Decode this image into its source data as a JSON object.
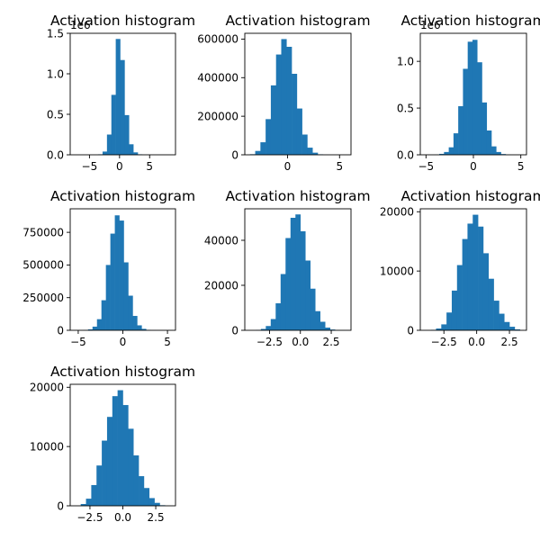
{
  "colors": {
    "bar": "#1f77b4",
    "axis": "#000000",
    "background": "#ffffff"
  },
  "chart_data": [
    {
      "type": "bar",
      "title": "Activation histogram",
      "offset_text": "1e6",
      "xlim": [
        -8.2,
        9.3
      ],
      "ylim": [
        0,
        1.5
      ],
      "xticks": [
        -5,
        0,
        5
      ],
      "xtick_labels": [
        "−5",
        "0",
        "5"
      ],
      "yticks": [
        0,
        0.5,
        1.0,
        1.5
      ],
      "ytick_labels": [
        "0.0",
        "0.5",
        "1.0",
        "1.5"
      ],
      "bin_edges": [
        -7.2,
        -6.47,
        -5.74,
        -5.01,
        -4.28,
        -3.55,
        -2.82,
        -2.09,
        -1.36,
        -0.63,
        0.1,
        0.83,
        1.56,
        2.29,
        3.02,
        3.75,
        4.48,
        5.21,
        5.94,
        6.67,
        7.4
      ],
      "values": [
        0,
        0,
        0,
        0,
        0.001,
        0.006,
        0.04,
        0.25,
        0.74,
        1.43,
        1.17,
        0.49,
        0.13,
        0.03,
        0.006,
        0.001,
        0,
        0,
        0,
        0
      ]
    },
    {
      "type": "bar",
      "title": "Activation histogram",
      "offset_text": "",
      "xlim": [
        -4.1,
        6.1
      ],
      "ylim": [
        0,
        630000
      ],
      "xticks": [
        0,
        5
      ],
      "xtick_labels": [
        "0",
        "5"
      ],
      "yticks": [
        0,
        200000,
        400000,
        600000
      ],
      "ytick_labels": [
        "0",
        "200000",
        "400000",
        "600000"
      ],
      "bin_edges": [
        -3.6,
        -3.1,
        -2.6,
        -2.1,
        -1.6,
        -1.1,
        -0.6,
        -0.1,
        0.4,
        0.9,
        1.4,
        1.9,
        2.4,
        2.9,
        3.4,
        3.9,
        4.4,
        4.9,
        5.4
      ],
      "values": [
        3000,
        20000,
        65000,
        185000,
        360000,
        520000,
        600000,
        560000,
        420000,
        240000,
        105000,
        37000,
        11000,
        2500,
        600,
        150,
        40,
        10
      ]
    },
    {
      "type": "bar",
      "title": "Activation histogram",
      "offset_text": "1e6",
      "xlim": [
        -5.6,
        5.6
      ],
      "ylim": [
        0,
        1.3
      ],
      "xticks": [
        -5,
        0,
        5
      ],
      "xtick_labels": [
        "−5",
        "0",
        "5"
      ],
      "yticks": [
        0,
        0.5,
        1.0
      ],
      "ytick_labels": [
        "0.0",
        "0.5",
        "1.0"
      ],
      "bin_edges": [
        -4.6,
        -4.1,
        -3.6,
        -3.1,
        -2.6,
        -2.1,
        -1.6,
        -1.1,
        -0.6,
        -0.1,
        0.4,
        0.9,
        1.4,
        1.9,
        2.4,
        2.9,
        3.4,
        3.9,
        4.4,
        4.9
      ],
      "values": [
        0.0005,
        0.002,
        0.01,
        0.03,
        0.08,
        0.23,
        0.52,
        0.92,
        1.21,
        1.23,
        0.99,
        0.56,
        0.26,
        0.09,
        0.03,
        0.008,
        0.002,
        0.0005,
        0.0001
      ]
    },
    {
      "type": "bar",
      "title": "Activation histogram",
      "offset_text": "",
      "xlim": [
        -5.9,
        5.9
      ],
      "ylim": [
        0,
        930000
      ],
      "xticks": [
        -5,
        0,
        5
      ],
      "xtick_labels": [
        "−5",
        "0",
        "5"
      ],
      "yticks": [
        0,
        250000,
        500000,
        750000
      ],
      "ytick_labels": [
        "0",
        "250000",
        "500000",
        "750000"
      ],
      "bin_edges": [
        -4.9,
        -4.4,
        -3.9,
        -3.4,
        -2.9,
        -2.4,
        -1.9,
        -1.4,
        -0.9,
        -0.4,
        0.1,
        0.6,
        1.1,
        1.6,
        2.1,
        2.6,
        3.1,
        3.6,
        4.1,
        4.6,
        5.1
      ],
      "values": [
        300,
        1500,
        7000,
        28000,
        85000,
        230000,
        500000,
        740000,
        880000,
        840000,
        520000,
        265000,
        110000,
        38000,
        11000,
        3000,
        800,
        200,
        50,
        10
      ]
    },
    {
      "type": "bar",
      "title": "Activation histogram",
      "offset_text": "",
      "xlim": [
        -4.5,
        4.1
      ],
      "ylim": [
        0,
        54000
      ],
      "xticks": [
        -2.5,
        0.0,
        2.5
      ],
      "xtick_labels": [
        "−2.5",
        "0.0",
        "2.5"
      ],
      "yticks": [
        0,
        20000,
        40000
      ],
      "ytick_labels": [
        "0",
        "20000",
        "40000"
      ],
      "bin_edges": [
        -3.6,
        -3.2,
        -2.8,
        -2.4,
        -2.0,
        -1.6,
        -1.2,
        -0.8,
        -0.4,
        0.0,
        0.4,
        0.8,
        1.2,
        1.6,
        2.0,
        2.4,
        2.8,
        3.2,
        3.6
      ],
      "values": [
        150,
        600,
        1900,
        5000,
        12000,
        25000,
        41000,
        50000,
        51500,
        44000,
        31000,
        18500,
        8500,
        3800,
        1200,
        350,
        80,
        20
      ]
    },
    {
      "type": "bar",
      "title": "Activation histogram",
      "offset_text": "",
      "xlim": [
        -4.3,
        3.8
      ],
      "ylim": [
        0,
        20500
      ],
      "xticks": [
        -2.5,
        0.0,
        2.5
      ],
      "xtick_labels": [
        "−2.5",
        "0.0",
        "2.5"
      ],
      "yticks": [
        0,
        10000,
        20000
      ],
      "ytick_labels": [
        "0",
        "10000",
        "20000"
      ],
      "bin_edges": [
        -3.5,
        -3.1,
        -2.7,
        -2.3,
        -1.9,
        -1.5,
        -1.1,
        -0.7,
        -0.3,
        0.1,
        0.5,
        0.9,
        1.3,
        1.7,
        2.1,
        2.5,
        2.9,
        3.3
      ],
      "values": [
        80,
        300,
        1000,
        3000,
        6700,
        11000,
        15400,
        18000,
        19500,
        17500,
        13000,
        8700,
        5000,
        2800,
        1400,
        600,
        150
      ]
    },
    {
      "type": "bar",
      "title": "Activation histogram",
      "offset_text": "",
      "xlim": [
        -4.0,
        4.0
      ],
      "ylim": [
        0,
        20500
      ],
      "xticks": [
        -2.5,
        0.0,
        2.5
      ],
      "xtick_labels": [
        "−2.5",
        "0.0",
        "2.5"
      ],
      "yticks": [
        0,
        10000,
        20000
      ],
      "ytick_labels": [
        "0",
        "10000",
        "20000"
      ],
      "bin_edges": [
        -3.2,
        -2.8,
        -2.4,
        -2.0,
        -1.6,
        -1.2,
        -0.8,
        -0.4,
        0.0,
        0.4,
        0.8,
        1.2,
        1.6,
        2.0,
        2.4,
        2.8,
        3.2
      ],
      "values": [
        300,
        1200,
        3500,
        6800,
        11000,
        15000,
        18500,
        19500,
        17000,
        13000,
        8500,
        5000,
        3000,
        1300,
        500,
        100
      ]
    }
  ]
}
